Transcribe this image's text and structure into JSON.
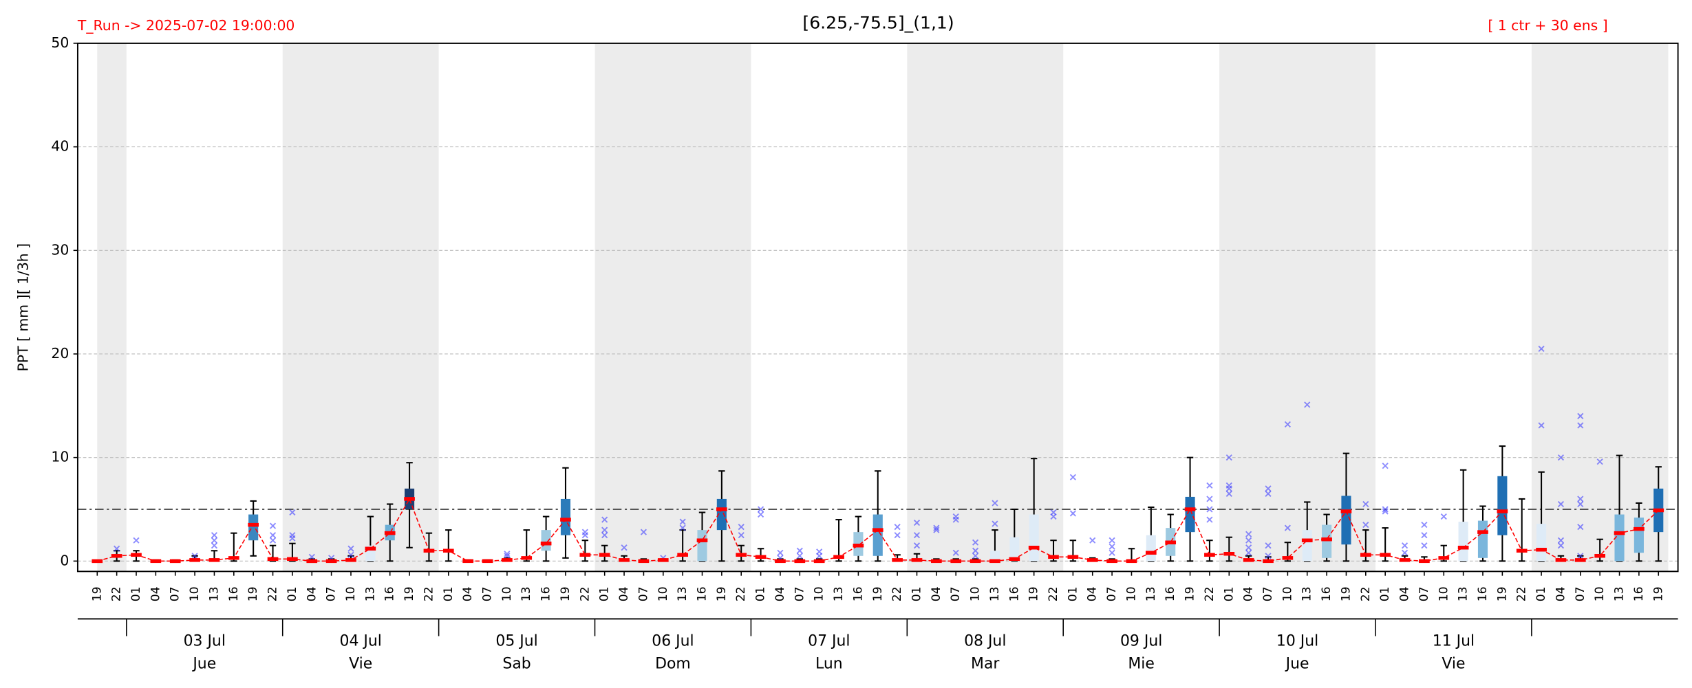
{
  "chart_data": {
    "type": "box",
    "title": "[6.25,-75.5]_(1,1)",
    "run_label": "T_Run -> 2025-07-02  19:00:00",
    "members_label": "[ 1 ctr + 30 ens ]",
    "ylabel": "PPT  [ mm ][ 1/3h ]",
    "ylim": [
      -1,
      50
    ],
    "yticks": [
      0,
      10,
      20,
      30,
      40,
      50
    ],
    "grid": true,
    "threshold": 5,
    "categories": [
      "19",
      "22",
      "01",
      "04",
      "07",
      "10",
      "13",
      "16",
      "19",
      "22",
      "01",
      "04",
      "07",
      "10",
      "13",
      "16",
      "19",
      "22",
      "01",
      "04",
      "07",
      "10",
      "13",
      "16",
      "19",
      "22",
      "01",
      "04",
      "07",
      "10",
      "13",
      "16",
      "19",
      "22",
      "01",
      "04",
      "07",
      "10",
      "13",
      "16",
      "19",
      "22",
      "01",
      "04",
      "07",
      "10",
      "13",
      "16",
      "19",
      "22",
      "01",
      "04",
      "07",
      "10",
      "13",
      "16",
      "19",
      "22",
      "01",
      "04",
      "07",
      "10",
      "13",
      "16",
      "19",
      "22",
      "01",
      "04",
      "07",
      "10",
      "13",
      "16",
      "19",
      "22",
      "01",
      "04",
      "07",
      "10",
      "13",
      "16",
      "19"
    ],
    "day_labels": [
      {
        "date": "03 Jul",
        "weekday": "Jue"
      },
      {
        "date": "04 Jul",
        "weekday": "Vie"
      },
      {
        "date": "05 Jul",
        "weekday": "Sab"
      },
      {
        "date": "06 Jul",
        "weekday": "Dom"
      },
      {
        "date": "07 Jul",
        "weekday": "Lun"
      },
      {
        "date": "08 Jul",
        "weekday": "Mar"
      },
      {
        "date": "09 Jul",
        "weekday": "Mie"
      },
      {
        "date": "10 Jul",
        "weekday": "Jue"
      },
      {
        "date": "11 Jul",
        "weekday": "Vie"
      }
    ],
    "control_color": "#ff0000",
    "outlier_color": "#4040ff",
    "whisker_color": "#000000",
    "shade_color": "#ececec",
    "control": [
      0,
      0.5,
      0.6,
      0,
      0,
      0.1,
      0.1,
      0.3,
      3.5,
      0.2,
      0.2,
      0,
      0,
      0.1,
      1.2,
      2.7,
      6,
      1,
      1,
      0,
      0,
      0.1,
      0.3,
      1.7,
      4,
      0.6,
      0.6,
      0.1,
      0,
      0.1,
      0.6,
      2,
      5,
      0.6,
      0.4,
      0,
      0,
      0,
      0.4,
      1.5,
      3,
      0.1,
      0.1,
      0,
      0,
      0,
      0,
      0.2,
      1.3,
      0.4,
      0.4,
      0.1,
      0,
      0,
      0.8,
      1.8,
      5,
      0.6,
      0.7,
      0.1,
      0,
      0.3,
      2,
      2.1,
      4.8,
      0.6,
      0.6,
      0.1,
      0,
      0.3,
      1.3,
      2.8,
      4.8,
      1,
      1.1,
      0.1,
      0.1,
      0.5,
      2.7,
      3.1,
      4.9
    ],
    "whisker_low": [
      0,
      0,
      0,
      0,
      0,
      0,
      0,
      0,
      0.5,
      0,
      0,
      0,
      0,
      0,
      0,
      0,
      1.3,
      0,
      0,
      0,
      0,
      0,
      0,
      0,
      0.3,
      0,
      0,
      0,
      0,
      0,
      0,
      0,
      0,
      0,
      0,
      0,
      0,
      0,
      0,
      0,
      0,
      0,
      0,
      0,
      0,
      0,
      0,
      0,
      0,
      0,
      0,
      0,
      0,
      0,
      0,
      0,
      0,
      0,
      0,
      0,
      0,
      0,
      0,
      0,
      0,
      0,
      0,
      0,
      0,
      0,
      0,
      0,
      0,
      0,
      0,
      0,
      0,
      0,
      0,
      0,
      0
    ],
    "whisker_high": [
      0,
      1,
      1,
      0.1,
      0.1,
      0.5,
      1,
      2.7,
      5.8,
      1.5,
      1.7,
      0.2,
      0.2,
      0.5,
      4.3,
      5.5,
      9.5,
      2.7,
      3,
      0.1,
      0.1,
      0.3,
      3,
      4.3,
      9,
      2,
      1.5,
      0.5,
      0.2,
      0.2,
      3,
      4.7,
      8.7,
      1.5,
      1.2,
      0.2,
      0.2,
      0.2,
      4,
      4.3,
      8.7,
      0.6,
      0.7,
      0.2,
      0.2,
      0.2,
      3,
      5,
      9.9,
      2,
      2,
      0.3,
      0.2,
      1.2,
      5.2,
      4.5,
      10,
      2,
      2.3,
      0.5,
      0.4,
      1.8,
      5.7,
      4.5,
      10.4,
      3,
      3.2,
      0.5,
      0.4,
      1.5,
      8.8,
      5.3,
      11.1,
      6,
      8.6,
      0.5,
      0.5,
      2.1,
      10.2,
      5.6,
      9.1
    ],
    "q1": [
      null,
      null,
      null,
      null,
      null,
      null,
      null,
      null,
      2,
      null,
      null,
      null,
      null,
      null,
      0,
      2,
      5,
      null,
      null,
      null,
      null,
      null,
      null,
      1,
      2.5,
      null,
      null,
      null,
      null,
      null,
      null,
      0,
      3,
      null,
      null,
      null,
      null,
      null,
      null,
      0.5,
      0.5,
      null,
      null,
      null,
      null,
      null,
      0,
      0,
      0,
      null,
      null,
      null,
      null,
      null,
      0,
      0.5,
      2.8,
      null,
      null,
      null,
      null,
      null,
      0,
      0.3,
      1.6,
      null,
      null,
      null,
      null,
      null,
      0,
      0.3,
      2.5,
      null,
      0,
      null,
      null,
      null,
      0,
      0.8,
      2.8
    ],
    "q3": [
      null,
      null,
      null,
      null,
      null,
      null,
      null,
      null,
      4.5,
      null,
      null,
      null,
      null,
      null,
      1.5,
      3.5,
      7,
      null,
      null,
      null,
      null,
      null,
      null,
      3,
      6,
      null,
      null,
      null,
      null,
      null,
      null,
      3,
      6,
      null,
      null,
      null,
      null,
      null,
      null,
      2.8,
      4.5,
      null,
      null,
      null,
      null,
      null,
      1,
      2.3,
      4.5,
      null,
      null,
      null,
      null,
      null,
      2.5,
      3.2,
      6.2,
      null,
      null,
      null,
      null,
      null,
      3,
      3.5,
      6.3,
      null,
      null,
      null,
      null,
      null,
      3.8,
      3.9,
      8.2,
      null,
      3.6,
      null,
      null,
      null,
      4.5,
      4.2,
      7
    ],
    "box_color": [
      null,
      null,
      null,
      null,
      null,
      null,
      null,
      null,
      "#3a87c0",
      null,
      null,
      null,
      null,
      null,
      "#deebf7",
      "#6aaed6",
      "#1c3f73",
      null,
      null,
      null,
      null,
      null,
      null,
      "#9ecae1",
      "#2b7bba",
      null,
      null,
      null,
      null,
      null,
      null,
      "#9ecae1",
      "#1f6fb4",
      null,
      null,
      null,
      null,
      null,
      null,
      "#9ecae1",
      "#5a9fd0",
      null,
      null,
      null,
      null,
      null,
      "#deebf7",
      "#deebf7",
      "#deebf7",
      null,
      null,
      null,
      null,
      null,
      "#deebf7",
      "#9ecae1",
      "#1f6fb4",
      null,
      null,
      null,
      null,
      null,
      "#deebf7",
      "#9ecae1",
      "#1f6fb4",
      null,
      null,
      null,
      null,
      null,
      "#deebf7",
      "#7ab6dc",
      "#1f6fb4",
      null,
      "#deebf7",
      null,
      null,
      null,
      "#7ab6dc",
      "#7ab6dc",
      "#1f6fb4"
    ],
    "outliers": [
      [],
      [
        1.2
      ],
      [
        2
      ],
      [],
      [],
      [
        0.5
      ],
      [
        1.5,
        2,
        2.5
      ],
      [],
      [],
      [
        2,
        2.5,
        3.4
      ],
      [
        2.2,
        2.5,
        4.7
      ],
      [
        0.4
      ],
      [
        0.3
      ],
      [
        0.6,
        1.2
      ],
      [],
      [],
      [],
      [],
      [],
      [],
      [],
      [
        0.5,
        0.7
      ],
      [],
      [],
      [],
      [
        2.5,
        2.8
      ],
      [
        2.5,
        3,
        4
      ],
      [
        1.3
      ],
      [
        2.8
      ],
      [
        0.3
      ],
      [
        3.2,
        3.8
      ],
      [],
      [],
      [
        2.5,
        3.3
      ],
      [
        4.5,
        5
      ],
      [
        0.3,
        0.8
      ],
      [
        0.5,
        1
      ],
      [
        0.5,
        0.9
      ],
      [],
      [],
      [],
      [
        2.5,
        3.3
      ],
      [
        1.5,
        2.5,
        3.7
      ],
      [
        3,
        3.2
      ],
      [
        0.8,
        4,
        4.3
      ],
      [
        0.5,
        1,
        1.8
      ],
      [
        3.6,
        5.6
      ],
      [],
      [],
      [
        4.3,
        4.7
      ],
      [
        4.6,
        8.1
      ],
      [
        2
      ],
      [
        0.8,
        1.4,
        2
      ],
      [],
      [],
      [],
      [],
      [
        4,
        5,
        6,
        7.3
      ],
      [
        6.5,
        7,
        7.3,
        10
      ],
      [
        0.8,
        1.3,
        2,
        2.6
      ],
      [
        0.5,
        1.5,
        6.5,
        7
      ],
      [
        3.2,
        13.2
      ],
      [
        15.1
      ],
      [],
      [],
      [
        3.5,
        5.5
      ],
      [
        4.8,
        5,
        9.2
      ],
      [
        0.8,
        1.5
      ],
      [
        1.5,
        2.5,
        3.5
      ],
      [
        4.3
      ],
      [],
      [],
      [],
      [],
      [
        13.1,
        20.5
      ],
      [
        1.5,
        2,
        5.5,
        10
      ],
      [
        0.5,
        3.3,
        5.5,
        6,
        13.1,
        14
      ],
      [
        9.6
      ],
      [],
      [],
      []
    ]
  }
}
